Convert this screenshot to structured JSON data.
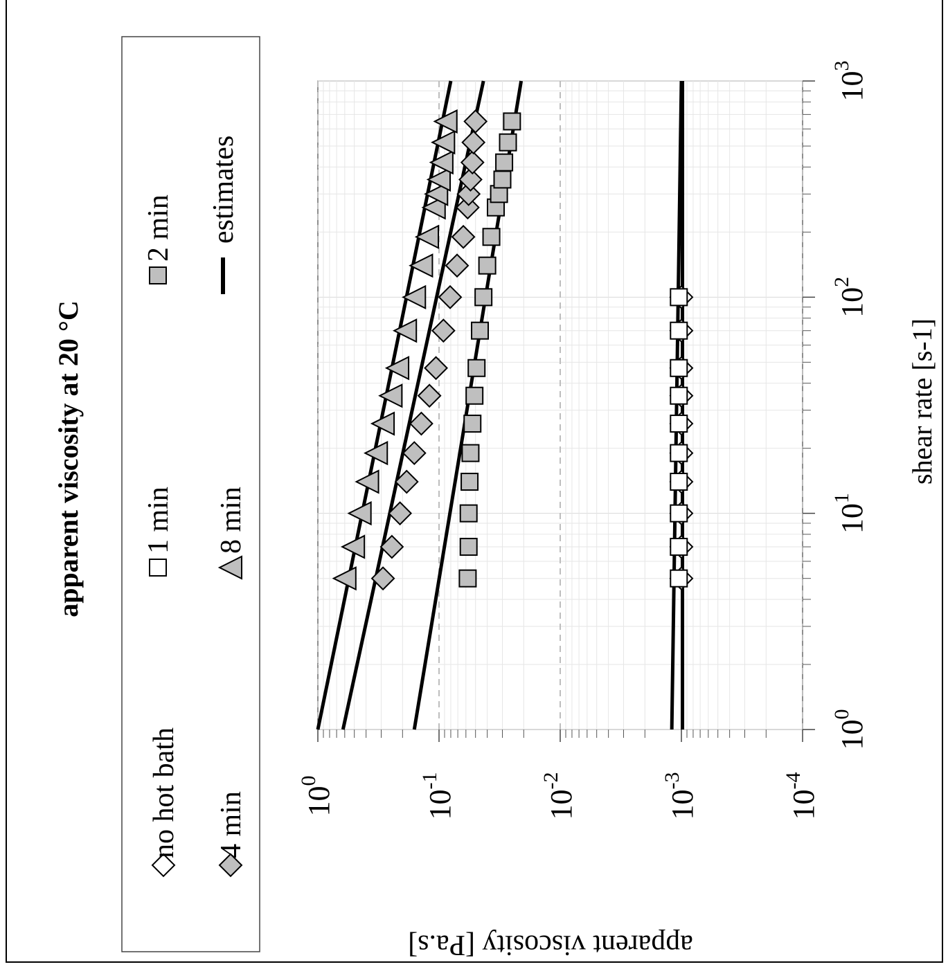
{
  "chart_data": {
    "type": "scatter",
    "title": "apparent viscosity at 20 °C",
    "xlabel": "shear rate [s-1]",
    "ylabel": "apparent viscosity [Pa.s]",
    "x_scale": "log",
    "y_scale": "log",
    "xlim": [
      1,
      1000
    ],
    "ylim": [
      0.0001,
      1
    ],
    "x_ticks": [
      {
        "base": "10",
        "exp": "0",
        "value": 1
      },
      {
        "base": "10",
        "exp": "1",
        "value": 10
      },
      {
        "base": "10",
        "exp": "2",
        "value": 100
      },
      {
        "base": "10",
        "exp": "3",
        "value": 1000
      }
    ],
    "y_ticks": [
      {
        "base": "10",
        "exp": "0",
        "value": 1
      },
      {
        "base": "10",
        "exp": "-1",
        "value": 0.1
      },
      {
        "base": "10",
        "exp": "-2",
        "value": 0.01
      },
      {
        "base": "10",
        "exp": "-3",
        "value": 0.001
      },
      {
        "base": "10",
        "exp": "-4",
        "value": 0.0001
      }
    ],
    "grid": true,
    "legend_position": "top",
    "series": [
      {
        "name": "no hot bath",
        "marker": "diamond-open",
        "x": [
          5,
          7,
          10,
          14,
          19,
          26,
          35,
          47,
          70,
          100
        ],
        "y": [
          0.001,
          0.001,
          0.001,
          0.001,
          0.001,
          0.001,
          0.001,
          0.001,
          0.001,
          0.001
        ]
      },
      {
        "name": "1 min",
        "marker": "square-open",
        "x": [
          5,
          7,
          10,
          14,
          19,
          26,
          35,
          47,
          70,
          100
        ],
        "y": [
          0.00105,
          0.00105,
          0.00105,
          0.00105,
          0.00105,
          0.00105,
          0.00105,
          0.00105,
          0.00105,
          0.00105
        ]
      },
      {
        "name": "2 min",
        "marker": "square-filled",
        "x": [
          5,
          7,
          10,
          14,
          19,
          26,
          35,
          47,
          70,
          100,
          140,
          190,
          260,
          300,
          350,
          420,
          520,
          650
        ],
        "y": [
          0.058,
          0.057,
          0.057,
          0.056,
          0.055,
          0.053,
          0.051,
          0.049,
          0.046,
          0.043,
          0.04,
          0.037,
          0.034,
          0.032,
          0.03,
          0.029,
          0.027,
          0.025
        ]
      },
      {
        "name": "4 min",
        "marker": "diamond-filled",
        "x": [
          5,
          7,
          10,
          14,
          19,
          26,
          35,
          47,
          70,
          100,
          140,
          190,
          260,
          300,
          350,
          420,
          520,
          650
        ],
        "y": [
          0.29,
          0.245,
          0.21,
          0.185,
          0.16,
          0.14,
          0.12,
          0.106,
          0.092,
          0.081,
          0.071,
          0.063,
          0.058,
          0.057,
          0.055,
          0.053,
          0.052,
          0.05
        ]
      },
      {
        "name": "8 min",
        "marker": "triangle-filled",
        "x": [
          5,
          7,
          10,
          14,
          19,
          26,
          35,
          47,
          70,
          100,
          140,
          190,
          260,
          300,
          350,
          420,
          520,
          650
        ],
        "y": [
          0.6,
          0.51,
          0.45,
          0.39,
          0.33,
          0.29,
          0.25,
          0.22,
          0.19,
          0.16,
          0.14,
          0.125,
          0.11,
          0.105,
          0.1,
          0.095,
          0.092,
          0.088
        ]
      }
    ],
    "estimates": {
      "name": "estimates",
      "lines": [
        {
          "x": [
            1,
            1000
          ],
          "y": [
            0.0012,
            0.001
          ]
        },
        {
          "x": [
            1,
            1000
          ],
          "y": [
            0.00098,
            0.00098
          ]
        },
        {
          "x": [
            1,
            1000
          ],
          "y": [
            0.16,
            0.021
          ]
        },
        {
          "x": [
            1,
            1000
          ],
          "y": [
            0.62,
            0.043
          ]
        },
        {
          "x": [
            1,
            1000
          ],
          "y": [
            1.0,
            0.08
          ]
        }
      ]
    }
  }
}
